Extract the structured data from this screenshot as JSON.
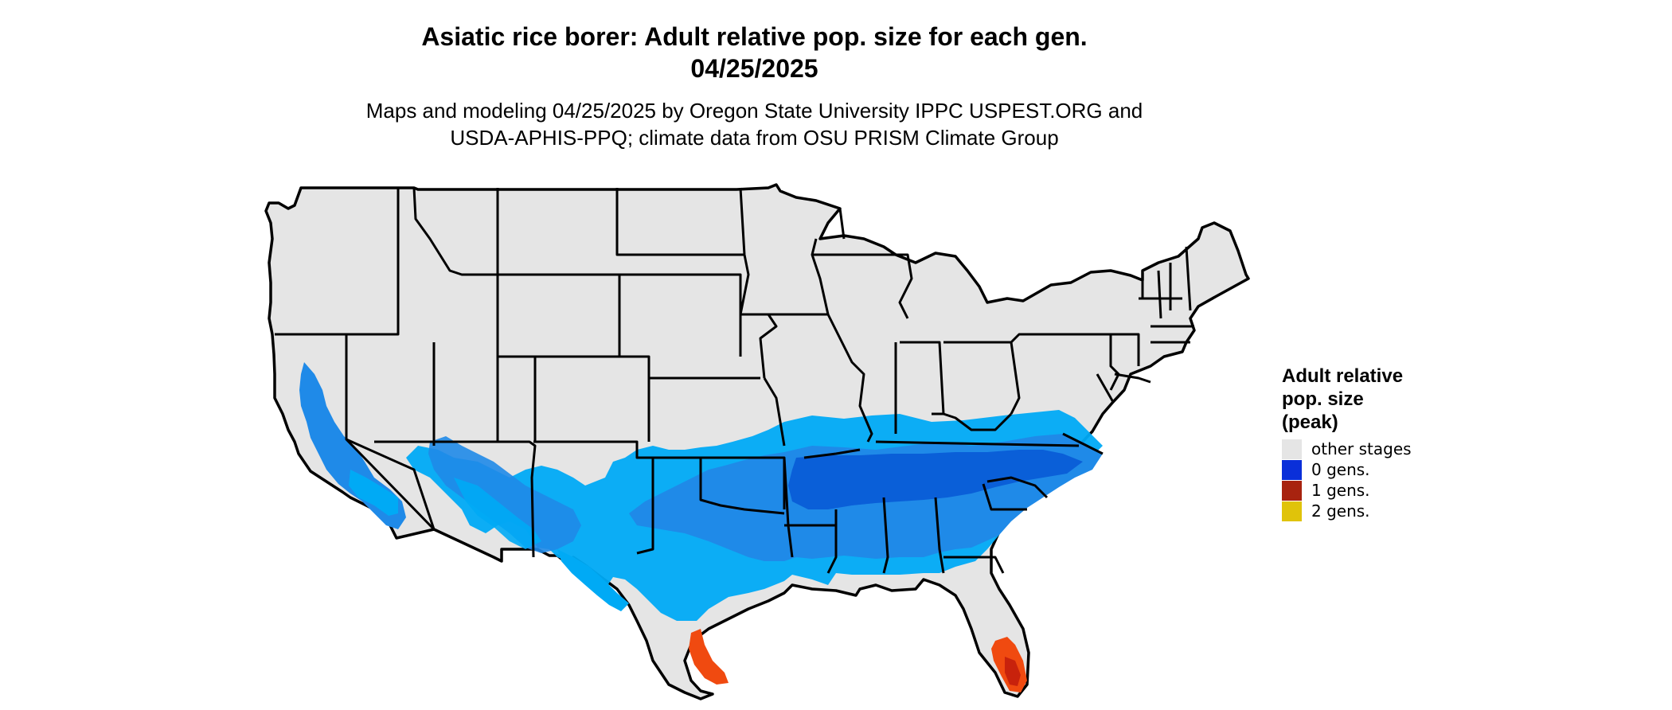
{
  "title": {
    "line1": "Asiatic rice borer: Adult relative pop. size for each gen.",
    "line2": "04/25/2025"
  },
  "subtitle": {
    "line1": "Maps and modeling 04/25/2025 by Oregon State University IPPC USPEST.ORG and",
    "line2": "USDA-APHIS-PPQ; climate data from OSU PRISM Climate Group"
  },
  "legend": {
    "title_lines": [
      "Adult relative",
      "pop. size",
      "(peak)"
    ],
    "items": [
      {
        "label": "other stages",
        "color": "#e5e5e5"
      },
      {
        "label": "0 gens.",
        "color": "#0a2fd9"
      },
      {
        "label": "1 gens.",
        "color": "#a8230f"
      },
      {
        "label": "2 gens.",
        "color": "#e0c30a"
      }
    ]
  },
  "colors": {
    "land": "#e5e5e5",
    "light_blue": "#00aaf5",
    "mid_blue": "#1f8ae8",
    "deep_blue": "#0a5fd8",
    "orange": "#f04a10",
    "red": "#c8220c",
    "border": "#000000"
  }
}
